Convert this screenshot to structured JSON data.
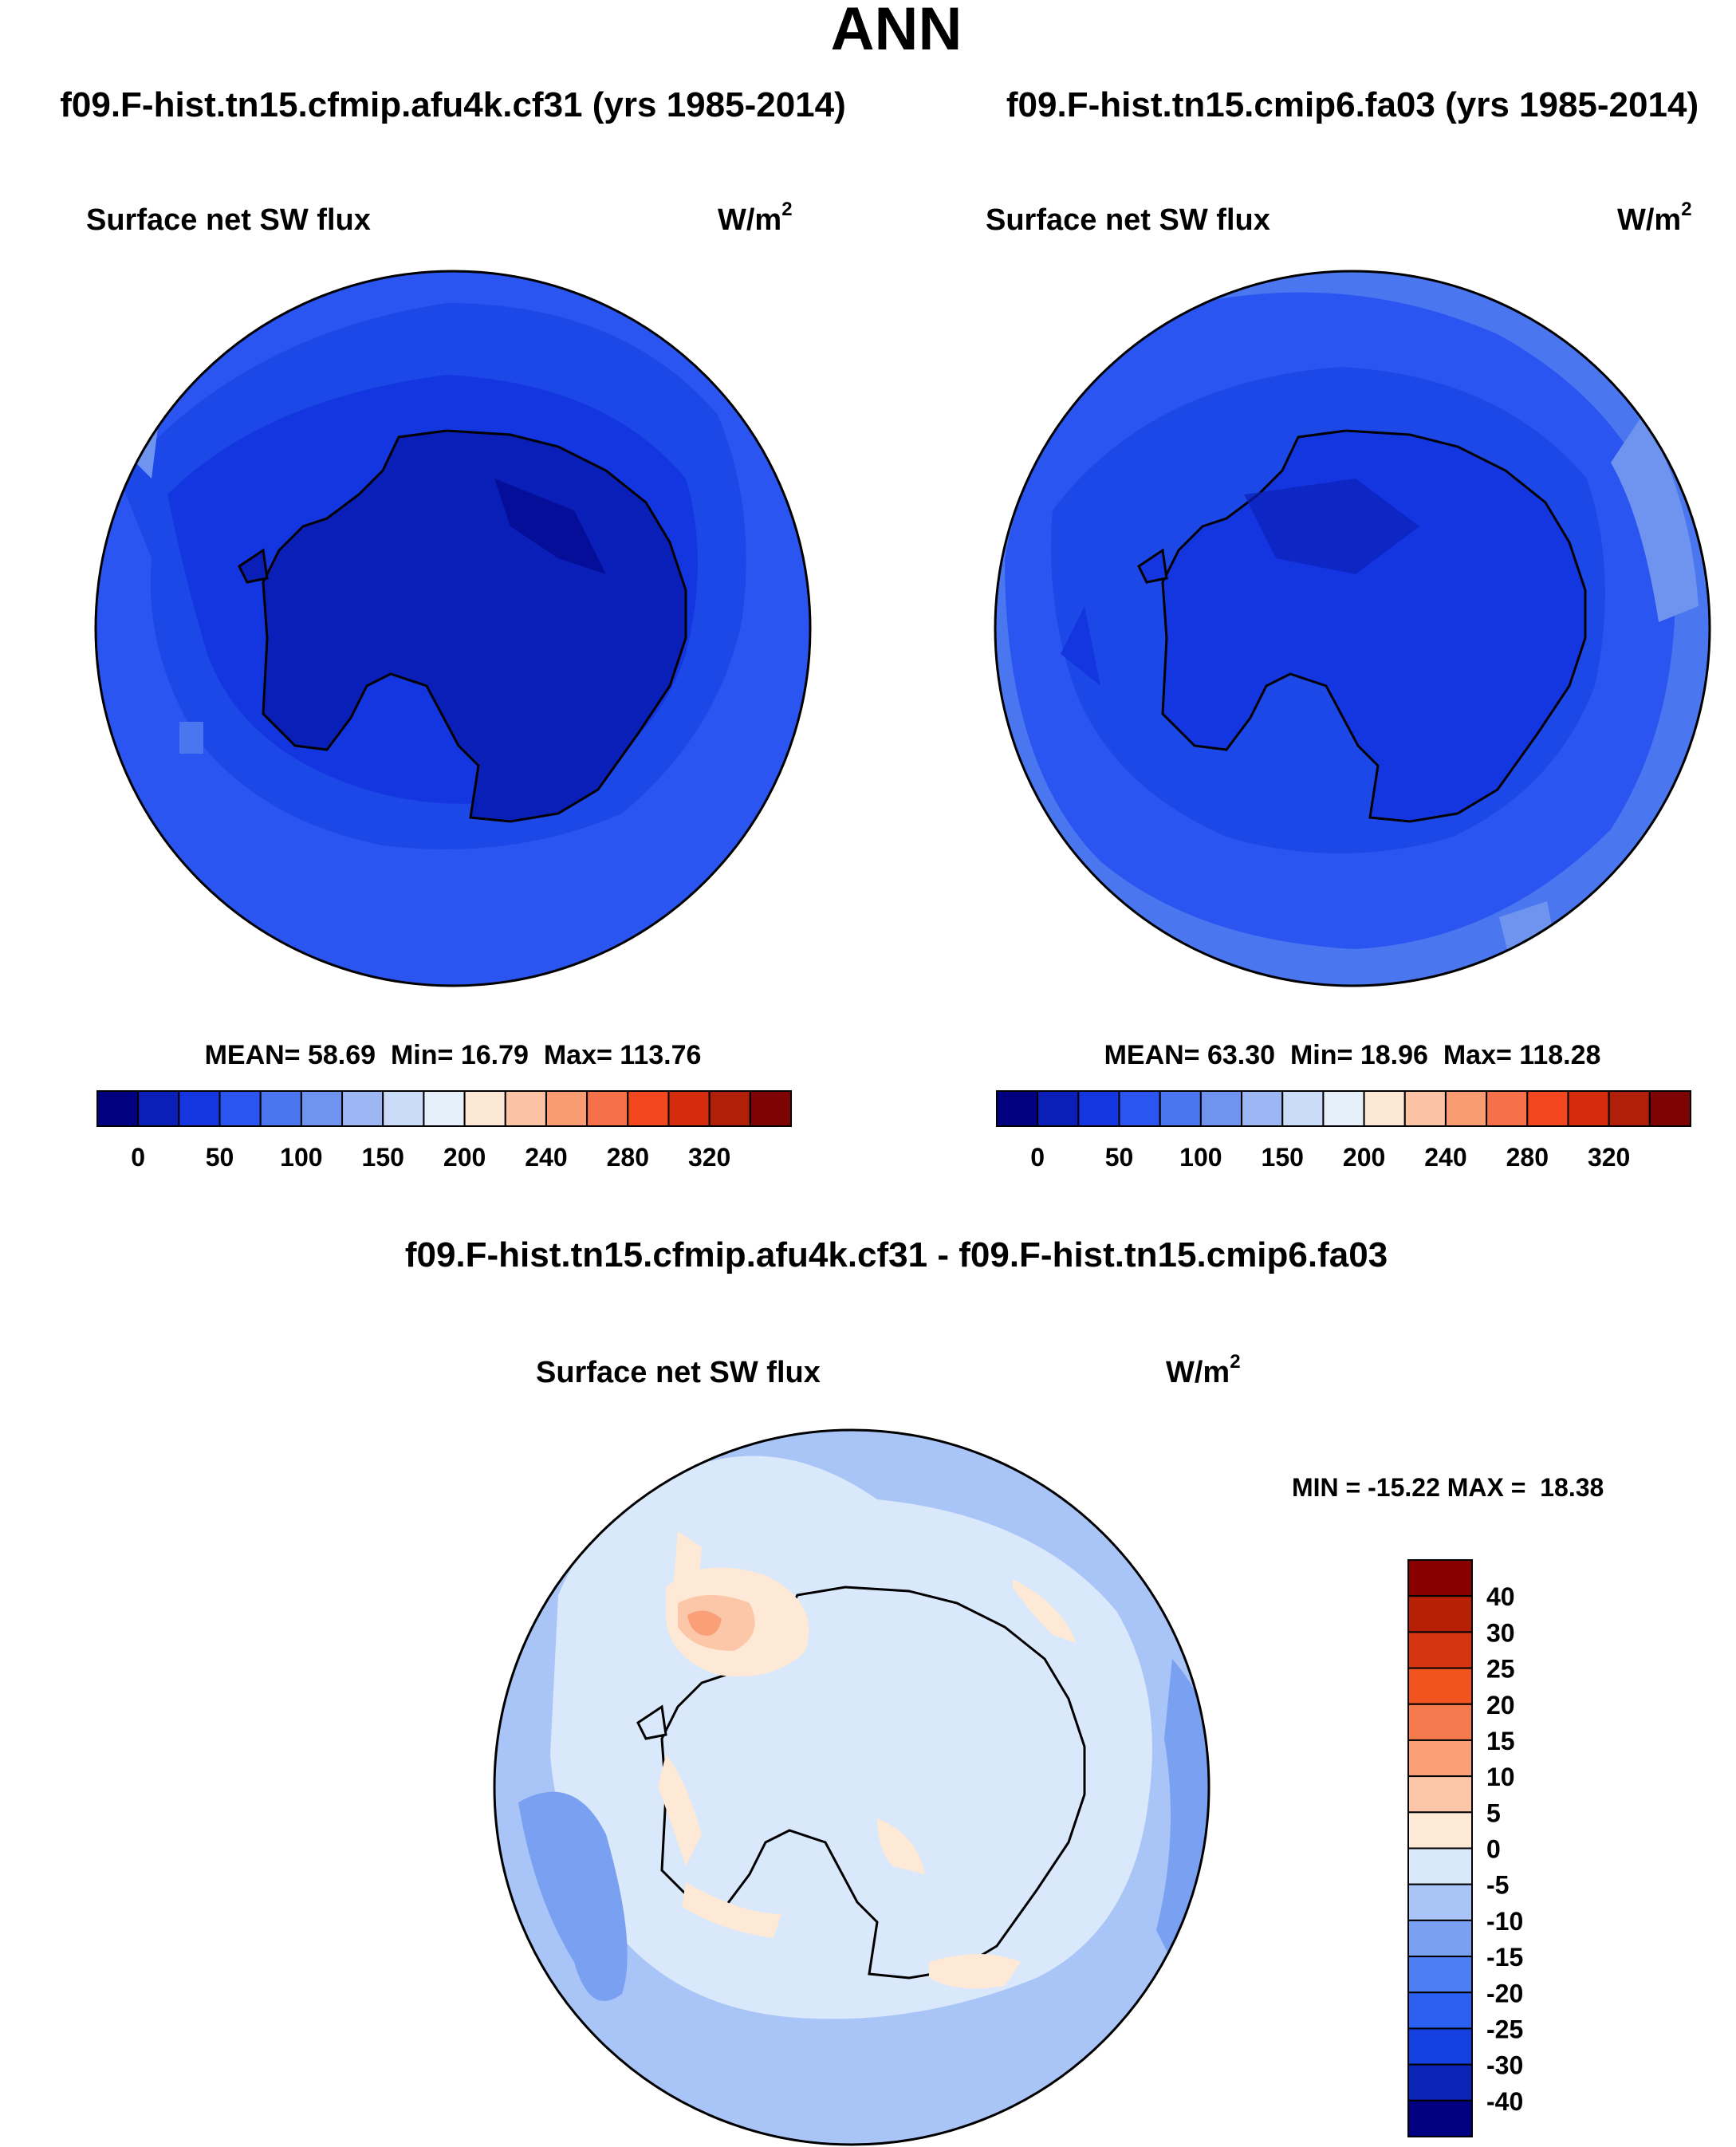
{
  "title": "ANN",
  "colors": {
    "background": "#ffffff",
    "outline": "#000000",
    "panel_scale": [
      "#000080",
      "#0a1fb8",
      "#1436e0",
      "#2b55f0",
      "#4a76f0",
      "#6f94ef",
      "#9db7f5",
      "#cadcf8",
      "#e6f0fb",
      "#fde7d5",
      "#fbc3a3",
      "#fa9c72",
      "#f6714a",
      "#f2461e",
      "#d52c0d",
      "#b01f08",
      "#7e0404"
    ],
    "diff_scale": [
      "#000080",
      "#0a24b8",
      "#1440e0",
      "#2b60f3",
      "#4d7ef2",
      "#79a0f1",
      "#a9c4f6",
      "#d9e8fa",
      "#fde9d6",
      "#fbc7a8",
      "#f9a079",
      "#f57a4e",
      "#f2541f",
      "#d63512",
      "#b82005",
      "#880000"
    ]
  },
  "chart_data": [
    {
      "type": "heatmap",
      "projection": "south-polar-stereographic",
      "case_title": "f09.F-hist.tn15.cfmip.afu4k.cf31 (yrs 1985-2014)",
      "variable": "Surface net SW flux",
      "units": "W/m",
      "units_exponent": "2",
      "stats": {
        "mean_label": "MEAN=",
        "mean": "58.69",
        "min_label": "Min=",
        "min": "16.79",
        "max_label": "Max=",
        "max": "113.76"
      },
      "colorbar_ticks": [
        "0",
        "50",
        "100",
        "150",
        "200",
        "240",
        "280",
        "320"
      ],
      "colorbar_orientation": "horizontal"
    },
    {
      "type": "heatmap",
      "projection": "south-polar-stereographic",
      "case_title": "f09.F-hist.tn15.cmip6.fa03 (yrs 1985-2014)",
      "variable": "Surface net SW flux",
      "units": "W/m",
      "units_exponent": "2",
      "stats": {
        "mean_label": "MEAN=",
        "mean": "63.30",
        "min_label": "Min=",
        "min": "18.96",
        "max_label": "Max=",
        "max": "118.28"
      },
      "colorbar_ticks": [
        "0",
        "50",
        "100",
        "150",
        "200",
        "240",
        "280",
        "320"
      ],
      "colorbar_orientation": "horizontal"
    },
    {
      "type": "heatmap",
      "projection": "south-polar-stereographic",
      "case_title": "f09.F-hist.tn15.cfmip.afu4k.cf31 - f09.F-hist.tn15.cmip6.fa03",
      "variable": "Surface net SW flux",
      "units": "W/m",
      "units_exponent": "2",
      "stats_text": "MIN = -15.22 MAX =  18.38",
      "colorbar_ticks": [
        "40",
        "30",
        "25",
        "20",
        "15",
        "10",
        "5",
        "0",
        "-5",
        "-10",
        "-15",
        "-20",
        "-25",
        "-30",
        "-40"
      ],
      "colorbar_orientation": "vertical"
    }
  ]
}
